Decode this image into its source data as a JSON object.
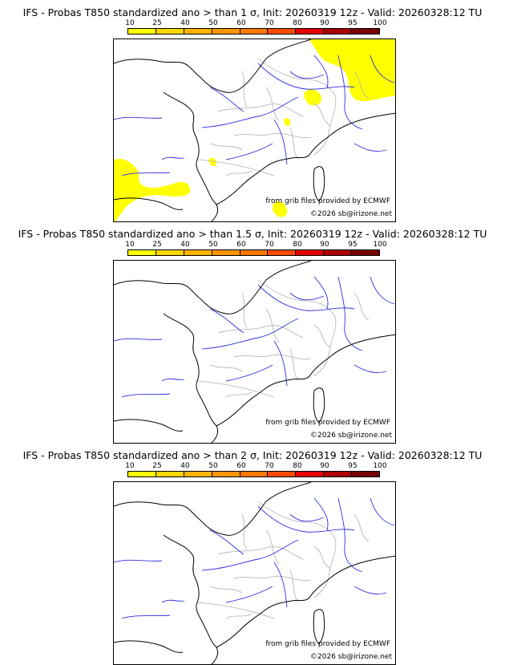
{
  "colorbar": {
    "labels": [
      "10",
      "25",
      "40",
      "50",
      "60",
      "70",
      "80",
      "90",
      "95",
      "100"
    ],
    "colors": [
      "#ffff00",
      "#ffd700",
      "#ffb400",
      "#ff9600",
      "#ff7800",
      "#ff4b00",
      "#e60000",
      "#aa0000",
      "#780000"
    ]
  },
  "panels": [
    {
      "title": "IFS - Probas T850  standardized ano > than 1 σ, Init: 20260319 12z - Valid: 20260328:12 TU",
      "credit": "from grib files provided by ECMWF",
      "copyright": "©2026 sb@irizone.net",
      "shaded": true
    },
    {
      "title": "IFS - Probas T850  standardized ano > than 1.5 σ, Init: 20260319 12z - Valid: 20260328:12 TU",
      "credit": "from grib files provided by ECMWF",
      "copyright": "©2026 sb@irizone.net",
      "shaded": false
    },
    {
      "title": "IFS - Probas T850  standardized ano > than 2 σ, Init: 20260319 12z - Valid: 20260328:12 TU",
      "credit": "from grib files provided by ECMWF",
      "copyright": "©2026 sb@irizone.net",
      "shaded": false
    }
  ]
}
